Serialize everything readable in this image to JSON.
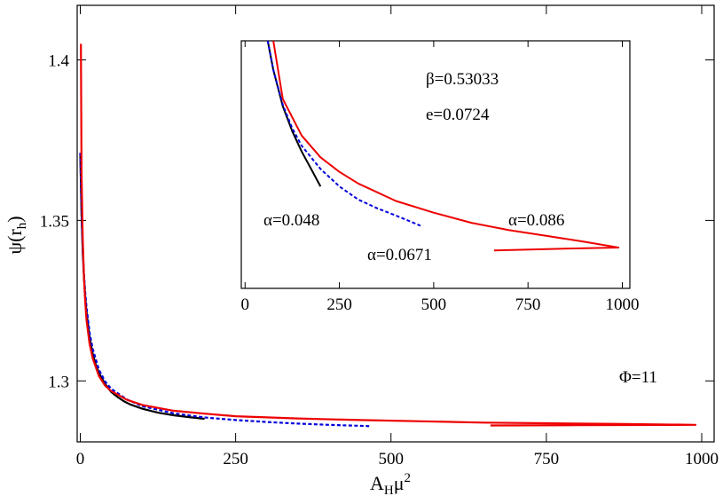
{
  "chart_data": [
    {
      "type": "line",
      "name": "main",
      "xlabel": "A_Hμ^2",
      "ylabel": "ψ(r_h)",
      "xlim": [
        -5,
        1020
      ],
      "ylim": [
        1.281,
        1.417
      ],
      "xticks": [
        0,
        250,
        500,
        750,
        1000
      ],
      "xtick_labels": [
        "0",
        "250",
        "500",
        "750",
        "1000"
      ],
      "yticks": [
        1.3,
        1.35,
        1.4
      ],
      "ytick_labels": [
        "1.3",
        "1.35",
        "1.4"
      ],
      "grid": false,
      "annotation": "Φ=11",
      "series": [
        {
          "color": "#000000",
          "dash": "solid",
          "x": [
            0,
            2,
            4,
            6,
            8,
            10,
            15,
            20,
            25,
            30,
            40,
            50,
            60,
            70,
            80,
            100,
            125,
            150,
            175,
            200
          ],
          "y": [
            1.371,
            1.352,
            1.34,
            1.332,
            1.326,
            1.3215,
            1.3135,
            1.3085,
            1.305,
            1.3025,
            1.299,
            1.2965,
            1.295,
            1.2937,
            1.2927,
            1.2913,
            1.2901,
            1.2893,
            1.2887,
            1.2882
          ]
        },
        {
          "color": "#0000dd",
          "dash": "dashed",
          "x": [
            0,
            2,
            4,
            6,
            8,
            10,
            15,
            20,
            30,
            40,
            50,
            75,
            100,
            150,
            200,
            250,
            300,
            350,
            400,
            450,
            465
          ],
          "y": [
            1.371,
            1.353,
            1.341,
            1.333,
            1.3275,
            1.323,
            1.315,
            1.31,
            1.3035,
            1.2998,
            1.2975,
            1.2942,
            1.2921,
            1.2899,
            1.2886,
            1.2878,
            1.2872,
            1.2867,
            1.2863,
            1.286,
            1.2859
          ]
        },
        {
          "color": "#ee0000",
          "dash": "solid",
          "x": [
            660,
            800,
            990,
            860,
            750,
            650,
            550,
            450,
            350,
            250,
            200,
            150,
            100,
            75,
            50,
            40,
            30,
            20,
            15,
            10,
            8,
            6,
            4,
            2,
            1
          ],
          "y": [
            1.2861,
            1.2862,
            1.2863,
            1.2866,
            1.2868,
            1.287,
            1.2874,
            1.2878,
            1.2883,
            1.289,
            1.2898,
            1.2907,
            1.2925,
            1.2941,
            1.2968,
            1.2985,
            1.3015,
            1.307,
            1.3115,
            1.319,
            1.3245,
            1.332,
            1.344,
            1.365,
            1.405
          ]
        }
      ]
    },
    {
      "type": "line",
      "name": "inset",
      "xlim": [
        -10,
        1020
      ],
      "xticks": [
        0,
        250,
        500,
        750,
        1000
      ],
      "xtick_labels": [
        "0",
        "250",
        "500",
        "750",
        "1000"
      ],
      "annotations": [
        "β=0.53033",
        "e=0.0724"
      ],
      "series": [
        {
          "name": "α=0.048",
          "color": "#000000",
          "dash": "solid",
          "x": [
            60,
            75,
            100,
            125,
            150,
            175,
            200
          ],
          "y": [
            100,
            80,
            55,
            38,
            24,
            12,
            0
          ]
        },
        {
          "name": "α=0.0671",
          "color": "#0000dd",
          "dash": "dashed",
          "x": [
            60,
            75,
            100,
            125,
            150,
            200,
            250,
            300,
            350,
            400,
            465
          ],
          "y": [
            100,
            80,
            56,
            40,
            28,
            12,
            0,
            -9,
            -15,
            -20,
            -27
          ]
        },
        {
          "name": "α=0.086",
          "color": "#ee0000",
          "dash": "solid",
          "x": [
            660,
            800,
            990,
            900,
            800,
            700,
            600,
            500,
            400,
            300,
            250,
            200,
            150,
            100,
            75
          ],
          "y": [
            -44,
            -43,
            -42,
            -38,
            -34,
            -30,
            -25,
            -18,
            -10,
            2,
            10,
            20,
            35,
            60,
            100
          ]
        }
      ],
      "ylim": [
        -70,
        100
      ]
    }
  ]
}
